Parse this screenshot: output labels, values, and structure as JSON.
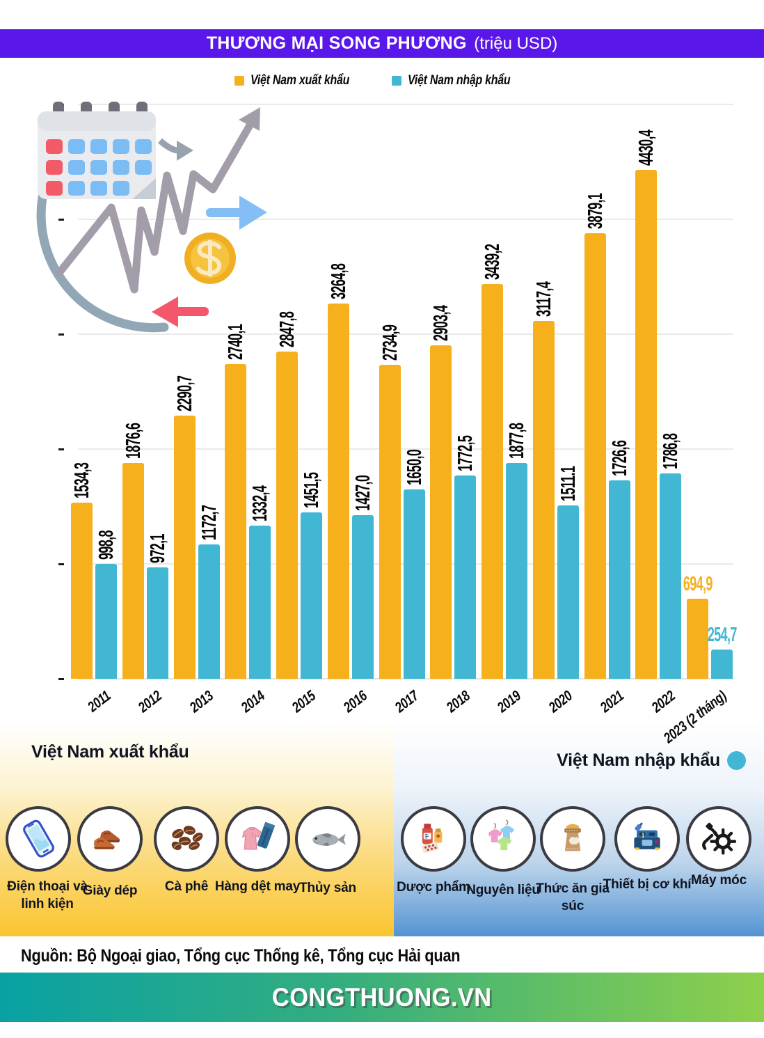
{
  "header": {
    "title": "THƯƠNG MẠI SONG PHƯƠNG",
    "unit": "(triệu USD)"
  },
  "legend": {
    "export": "Việt Nam xuất khẩu",
    "import": "Việt Nam nhập khẩu"
  },
  "colors": {
    "export": "#F5B01B",
    "import": "#41B7D3",
    "header_bg": "#5A17EA",
    "footer_gradient_start": "#09A1A4",
    "footer_gradient_end": "#8ED04B"
  },
  "chart_data": {
    "type": "bar",
    "title": "THƯƠNG MẠI SONG PHƯƠNG (triệu USD)",
    "unit": "triệu USD",
    "categories": [
      "2011",
      "2012",
      "2013",
      "2014",
      "2015",
      "2016",
      "2017",
      "2018",
      "2019",
      "2020",
      "2021",
      "2022",
      "2023 (2 tháng)"
    ],
    "series": [
      {
        "name": "Việt Nam xuất khẩu",
        "color": "#F5B01B",
        "values": [
          1534.3,
          1876.6,
          2290.7,
          2740.1,
          2847.8,
          3264.8,
          2734.9,
          2903.4,
          3439.2,
          3117.4,
          3879.1,
          4430.4,
          694.9
        ],
        "labels": [
          "1534,3",
          "1876,6",
          "2290,7",
          "2740,1",
          "2847,8",
          "3264,8",
          "2734,9",
          "2903,4",
          "3439,2",
          "3117,4",
          "3879,1",
          "4430,4",
          "694,9"
        ]
      },
      {
        "name": "Việt Nam nhập khẩu",
        "color": "#41B7D3",
        "values": [
          998.8,
          972.1,
          1172.7,
          1332.4,
          1451.5,
          1427.0,
          1650.0,
          1772.5,
          1877.8,
          1511.1,
          1726.6,
          1786.8,
          254.7
        ],
        "labels": [
          "998,8",
          "972,1",
          "1172,7",
          "1332,4",
          "1451,5",
          "1427,0",
          "1650,0",
          "1772,5",
          "1877,8",
          "1511.1",
          "1726,6",
          "1786,8",
          "254,7"
        ]
      }
    ],
    "ylim": [
      0,
      5000
    ],
    "ytick_step": 1000,
    "grid": true,
    "y_axis_numbers_visible": false,
    "legend_position": "top"
  },
  "sections": {
    "export": {
      "heading": "Việt Nam xuất khẩu",
      "items": [
        {
          "label": "Điện thoại và linh kiện",
          "icon": "phone-icon"
        },
        {
          "label": "Giày dép",
          "icon": "shoes-icon"
        },
        {
          "label": "Cà phê",
          "icon": "coffee-icon"
        },
        {
          "label": "Hàng dệt may",
          "icon": "textile-icon"
        },
        {
          "label": "Thủy sản",
          "icon": "fish-icon"
        }
      ]
    },
    "import": {
      "heading": "Việt Nam nhập khẩu",
      "items": [
        {
          "label": "Dược phẩm",
          "icon": "medicine-icon"
        },
        {
          "label": "Nguyên liệu",
          "icon": "materials-icon"
        },
        {
          "label": "Thức ăn gia súc",
          "icon": "animal-feed-icon"
        },
        {
          "label": "Thiết bị cơ khí",
          "icon": "mechanical-equipment-icon"
        },
        {
          "label": "Máy móc",
          "icon": "machinery-icon"
        }
      ]
    }
  },
  "source": "Nguồn: Bộ Ngoại giao, Tổng cục Thống kê, Tổng cục Hải quan",
  "footer": "CONGTHUONG.VN"
}
